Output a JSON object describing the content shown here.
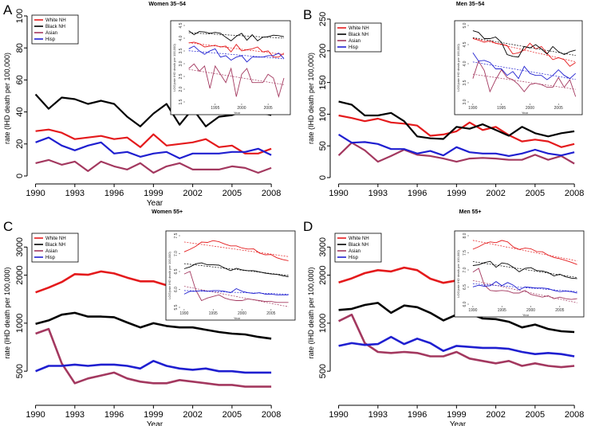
{
  "series_meta": [
    {
      "name": "White NH",
      "color": "#e41a1c"
    },
    {
      "name": "Black NH",
      "color": "#000000"
    },
    {
      "name": "Asian",
      "color": "#a3385f"
    },
    {
      "name": "Hisp",
      "color": "#1f1fd0"
    }
  ],
  "chart_data": [
    {
      "panel": "A",
      "type": "line",
      "title": "Women  35–54",
      "xlabel": "Year",
      "ylabel": "rate (IHD death per 100,000)",
      "scale": "linear",
      "x": [
        1990,
        1991,
        1992,
        1993,
        1994,
        1995,
        1996,
        1997,
        1998,
        1999,
        2000,
        2001,
        2002,
        2003,
        2004,
        2005,
        2006,
        2007,
        2008
      ],
      "xticks": [
        1990,
        1993,
        1996,
        1999,
        2002,
        2005,
        2008
      ],
      "yticks": [
        0,
        20,
        40,
        60,
        80,
        100
      ],
      "ylim": [
        -3,
        100
      ],
      "legend": "top-left",
      "series": [
        {
          "name": "White NH",
          "values": [
            28,
            29,
            27,
            23,
            24,
            25,
            23,
            24,
            18,
            26,
            19,
            20,
            21,
            23,
            18,
            19,
            14,
            14,
            17
          ]
        },
        {
          "name": "Black NH",
          "values": [
            51,
            42,
            49,
            48,
            45,
            47,
            45,
            37,
            31,
            39,
            45,
            32,
            42,
            31,
            37,
            38,
            41,
            40,
            38
          ]
        },
        {
          "name": "Asian",
          "values": [
            8,
            10,
            7,
            9,
            3,
            9,
            6,
            4,
            8,
            2,
            6,
            8,
            4,
            4,
            4,
            6,
            5,
            2,
            5
          ]
        },
        {
          "name": "Hisp",
          "values": [
            21,
            24,
            19,
            16,
            19,
            21,
            14,
            15,
            12,
            14,
            15,
            11,
            14,
            14,
            14,
            15,
            15,
            17,
            13
          ]
        }
      ],
      "inset": {
        "xticks": [
          1995,
          2000,
          2005
        ],
        "yticks": [
          "1.5",
          "2.0",
          "2.5",
          "3.0",
          "3.5",
          "4.0",
          "4.5"
        ],
        "ylabel": "LOG(rate IHD death per 100,000)",
        "xlabel": "Year"
      }
    },
    {
      "panel": "B",
      "type": "line",
      "title": "Men  35–54",
      "xlabel": "",
      "ylabel": "rate (IHD death per 100,000)",
      "scale": "linear",
      "x": [
        1990,
        1991,
        1992,
        1993,
        1994,
        1995,
        1996,
        1997,
        1998,
        1999,
        2000,
        2001,
        2002,
        2003,
        2004,
        2005,
        2006,
        2007,
        2008
      ],
      "xticks": [
        1990,
        1993,
        1996,
        1999,
        2002,
        2005,
        2008
      ],
      "yticks": [
        0,
        50,
        100,
        150,
        200,
        250
      ],
      "ylim": [
        -5,
        255
      ],
      "legend": "top-left",
      "series": [
        {
          "name": "White NH",
          "values": [
            98,
            94,
            89,
            93,
            87,
            85,
            82,
            66,
            68,
            73,
            87,
            75,
            80,
            67,
            57,
            60,
            57,
            48,
            53
          ]
        },
        {
          "name": "Black NH",
          "values": [
            120,
            115,
            98,
            98,
            102,
            89,
            65,
            62,
            61,
            80,
            77,
            84,
            75,
            66,
            80,
            70,
            65,
            70,
            73
          ]
        },
        {
          "name": "Asian",
          "values": [
            35,
            55,
            43,
            25,
            34,
            44,
            36,
            34,
            30,
            25,
            30,
            31,
            30,
            28,
            28,
            36,
            28,
            34,
            22
          ]
        },
        {
          "name": "Hisp",
          "values": [
            68,
            55,
            56,
            53,
            45,
            45,
            38,
            42,
            35,
            48,
            40,
            38,
            38,
            34,
            38,
            44,
            38,
            35,
            40
          ]
        }
      ],
      "inset": {
        "xticks": [
          1990,
          1995,
          2000,
          2005
        ],
        "yticks": [
          "3.0",
          "3.5",
          "4.0",
          "4.5",
          "5.0"
        ],
        "ylabel": "LOG(rate IHD death per 100,000)",
        "xlabel": "Year"
      }
    },
    {
      "panel": "C",
      "type": "line",
      "title": "Women  55+",
      "xlabel": "Year",
      "ylabel": "rate (IHD death per 100,000)",
      "scale": "log",
      "x": [
        1990,
        1991,
        1992,
        1993,
        1994,
        1995,
        1996,
        1997,
        1998,
        1999,
        2000,
        2001,
        2002,
        2003,
        2004,
        2005,
        2006,
        2007,
        2008
      ],
      "xticks": [
        1990,
        1993,
        1996,
        1999,
        2002,
        2005,
        2008
      ],
      "yticks": [
        500,
        1000,
        2000,
        3000
      ],
      "ylim": [
        320,
        4200
      ],
      "legend": "top-left",
      "series": [
        {
          "name": "White NH",
          "values": [
            1560,
            1670,
            1810,
            2030,
            2010,
            2110,
            2050,
            1930,
            1830,
            1830,
            1730,
            1680,
            1690,
            1510,
            1440,
            1450,
            1330,
            1270,
            1230
          ]
        },
        {
          "name": "Black NH",
          "values": [
            990,
            1040,
            1130,
            1160,
            1100,
            1100,
            1090,
            1010,
            940,
            1000,
            960,
            940,
            940,
            910,
            880,
            860,
            850,
            820,
            800
          ]
        },
        {
          "name": "Asian",
          "values": [
            860,
            920,
            560,
            420,
            450,
            470,
            490,
            450,
            430,
            420,
            420,
            440,
            430,
            420,
            410,
            410,
            400,
            400,
            400
          ]
        },
        {
          "name": "Hisp",
          "values": [
            500,
            540,
            540,
            550,
            540,
            550,
            550,
            540,
            520,
            580,
            540,
            520,
            510,
            520,
            500,
            500,
            490,
            490,
            490
          ]
        }
      ],
      "inset": {
        "xticks": [
          1990,
          1995,
          2000,
          2005
        ],
        "yticks": [
          "5.5",
          "6.0",
          "6.5",
          "7.0",
          "7.5"
        ],
        "ylabel": "LOG(rate IHD death per 100,000)",
        "xlabel": "Year"
      }
    },
    {
      "panel": "D",
      "type": "line",
      "title": "Men  55+",
      "xlabel": "Year",
      "ylabel": "rate (IHD death per 100,000)",
      "scale": "log",
      "x": [
        1990,
        1991,
        1992,
        1993,
        1994,
        1995,
        1996,
        1997,
        1998,
        1999,
        2000,
        2001,
        2002,
        2003,
        2004,
        2005,
        2006,
        2007,
        2008
      ],
      "xticks": [
        1990,
        1993,
        1996,
        1999,
        2002,
        2005,
        2008
      ],
      "yticks": [
        500,
        1000,
        2000,
        3000
      ],
      "ylim": [
        320,
        4200
      ],
      "legend": "top-left",
      "series": [
        {
          "name": "White NH",
          "values": [
            1800,
            1910,
            2060,
            2150,
            2110,
            2230,
            2150,
            1900,
            1790,
            1850,
            1820,
            1700,
            1690,
            1560,
            1470,
            1430,
            1370,
            1310,
            1240
          ]
        },
        {
          "name": "Black NH",
          "values": [
            1210,
            1230,
            1300,
            1340,
            1160,
            1290,
            1260,
            1160,
            1040,
            1130,
            1150,
            1070,
            1060,
            1020,
            940,
            980,
            920,
            890,
            880
          ]
        },
        {
          "name": "Asian",
          "values": [
            1030,
            1130,
            750,
            660,
            650,
            660,
            650,
            620,
            620,
            660,
            600,
            580,
            560,
            580,
            540,
            560,
            540,
            530,
            540
          ]
        },
        {
          "name": "Hisp",
          "values": [
            720,
            750,
            730,
            740,
            820,
            740,
            800,
            750,
            670,
            720,
            710,
            700,
            700,
            690,
            660,
            640,
            650,
            640,
            620
          ]
        }
      ],
      "inset": {
        "xticks": [
          1990,
          1995,
          2000,
          2005
        ],
        "yticks": [
          "6.0",
          "6.5",
          "7.0",
          "7.5",
          "8.0"
        ],
        "ylabel": "LOG(rate IHD death per 100,000)",
        "xlabel": "Year"
      }
    }
  ]
}
